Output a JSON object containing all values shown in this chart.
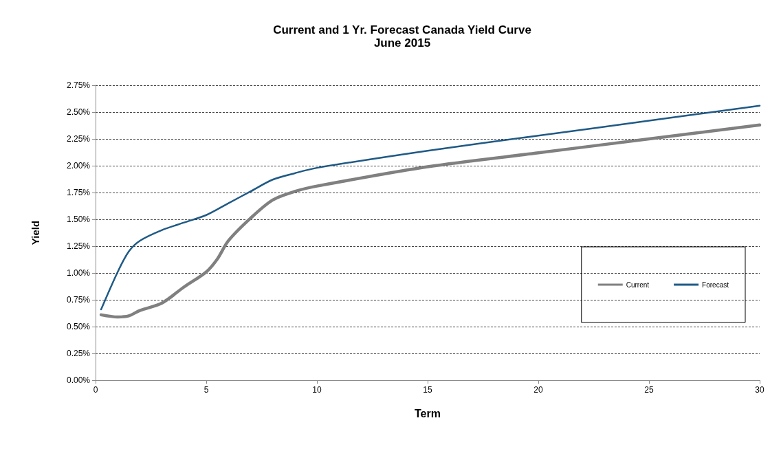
{
  "chart_data": {
    "type": "line",
    "title": "Current and 1 Yr. Forecast Canada Yield Curve",
    "subtitle": "June 2015",
    "xlabel": "Term",
    "ylabel": "Yield",
    "series": [
      {
        "name": "Current",
        "color": "#808080",
        "x": [
          0.25,
          1,
          1.5,
          2,
          3,
          4,
          5,
          5.5,
          6,
          7,
          8,
          9,
          10,
          15,
          20,
          25,
          30
        ],
        "values": [
          0.61,
          0.59,
          0.6,
          0.65,
          0.72,
          0.87,
          1.01,
          1.13,
          1.3,
          1.51,
          1.68,
          1.76,
          1.81,
          1.99,
          2.12,
          2.25,
          2.38
        ]
      },
      {
        "name": "Forecast",
        "color": "#1f5a85",
        "x": [
          0.25,
          1,
          1.5,
          2,
          3,
          4,
          5,
          6,
          7,
          8,
          9,
          10,
          15,
          20,
          25,
          30
        ],
        "values": [
          0.66,
          1.01,
          1.2,
          1.3,
          1.4,
          1.47,
          1.54,
          1.65,
          1.76,
          1.87,
          1.93,
          1.98,
          2.14,
          2.28,
          2.42,
          2.56
        ]
      }
    ],
    "xlim": [
      0,
      30
    ],
    "xticks": [
      0,
      5,
      10,
      15,
      20,
      25,
      30
    ],
    "ylim": [
      0,
      2.75
    ],
    "yticks": [
      {
        "value": 0,
        "label": "0.00%"
      },
      {
        "value": 0.25,
        "label": "0.25%"
      },
      {
        "value": 0.5,
        "label": "0.50%"
      },
      {
        "value": 0.75,
        "label": "0.75%"
      },
      {
        "value": 1,
        "label": "1.00%"
      },
      {
        "value": 1.25,
        "label": "1.25%"
      },
      {
        "value": 1.5,
        "label": "1.50%"
      },
      {
        "value": 1.75,
        "label": "1.75%"
      },
      {
        "value": 2,
        "label": "2.00%"
      },
      {
        "value": 2.25,
        "label": "2.25%"
      },
      {
        "value": 2.5,
        "label": "2.50%"
      },
      {
        "value": 2.75,
        "label": "2.75%"
      }
    ],
    "grid": "y",
    "legend": "right",
    "marker": "none",
    "line_style": "solid"
  }
}
